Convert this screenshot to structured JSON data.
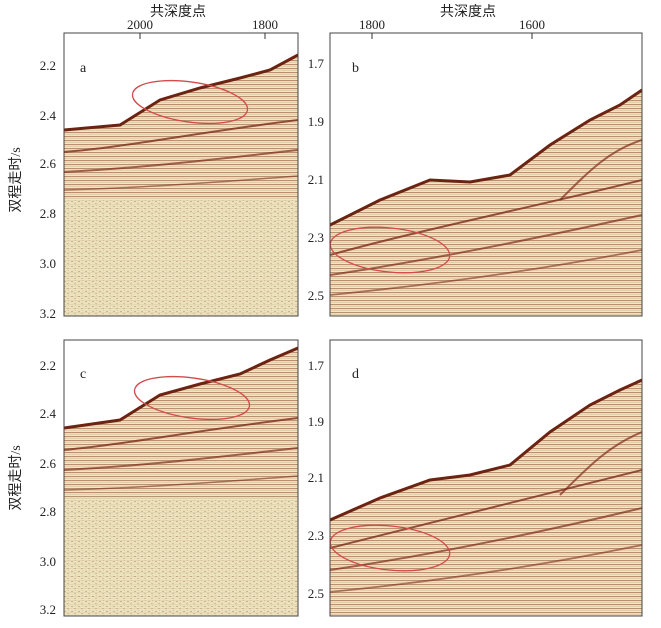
{
  "figure": {
    "top_axis_title_left": "共深度点",
    "top_axis_title_right": "共深度点",
    "ylabel_top": "双程走时/s",
    "ylabel_bottom": "双程走时/s",
    "panels": [
      {
        "id": "a",
        "label": "a",
        "x_ticks": [
          "2000",
          "1800"
        ],
        "y_ticks": [
          "2.2",
          "2.4",
          "2.6",
          "2.8",
          "3.0",
          "3.2"
        ],
        "colors": {
          "background": "#efe6c2",
          "reflector": "#7a2e1a",
          "highlight": "#d24a4a"
        }
      },
      {
        "id": "b",
        "label": "b",
        "x_ticks": [
          "1800",
          "1600"
        ],
        "y_ticks": [
          "1.7",
          "1.9",
          "2.1",
          "2.3",
          "2.5"
        ],
        "colors": {
          "background": "#efe6c2",
          "reflector": "#7a2e1a",
          "highlight": "#d24a4a"
        }
      },
      {
        "id": "c",
        "label": "c",
        "x_ticks": [],
        "y_ticks": [
          "2.2",
          "2.4",
          "2.6",
          "2.8",
          "3.0",
          "3.2"
        ],
        "colors": {
          "background": "#efe6c2",
          "reflector": "#7a2e1a",
          "highlight": "#d24a4a"
        }
      },
      {
        "id": "d",
        "label": "d",
        "x_ticks": [],
        "y_ticks": [
          "1.7",
          "1.9",
          "2.1",
          "2.3",
          "2.5"
        ],
        "colors": {
          "background": "#efe6c2",
          "reflector": "#7a2e1a",
          "highlight": "#d24a4a"
        }
      }
    ]
  }
}
